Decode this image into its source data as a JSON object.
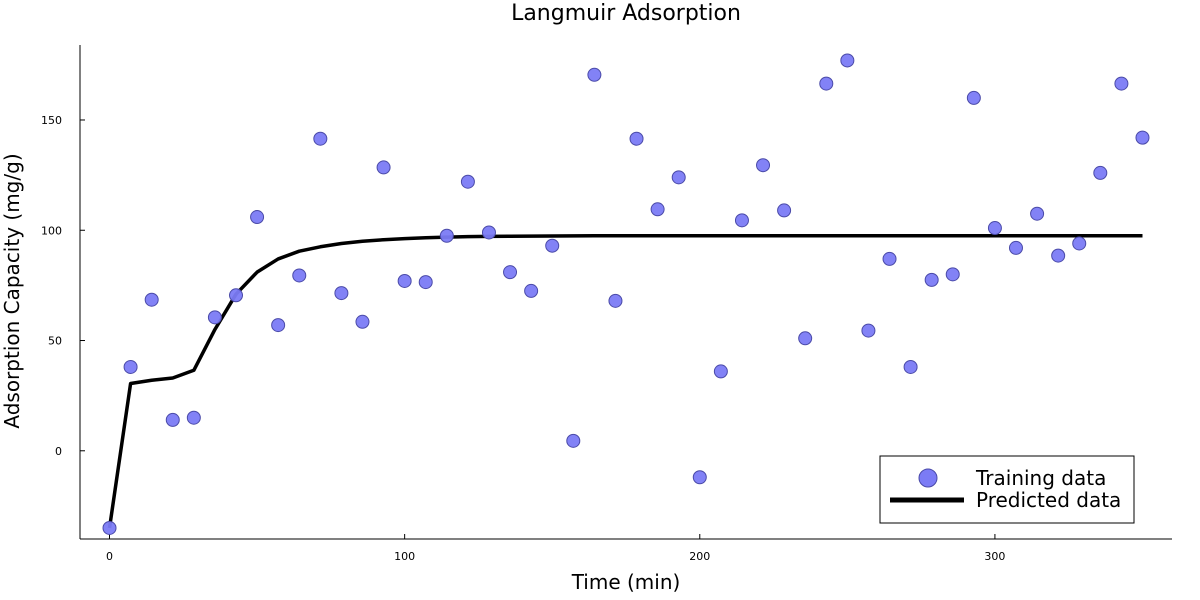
{
  "chart_data": {
    "type": "scatter",
    "title": "Langmuir Adsorption",
    "xlabel": "Time (min)",
    "ylabel": "Adsorption Capacity (mg/g)",
    "xlim": [
      -10,
      360
    ],
    "ylim": [
      -40,
      184
    ],
    "xticks": [
      0,
      100,
      200,
      300
    ],
    "yticks": [
      0,
      50,
      100,
      150
    ],
    "grid": false,
    "legend_position": "bottom-right",
    "series": [
      {
        "name": "Training data",
        "kind": "scatter",
        "color": "#7b7bf5",
        "x": [
          0,
          7.14,
          14.29,
          21.43,
          28.57,
          35.71,
          42.86,
          50,
          57.14,
          64.29,
          71.43,
          78.57,
          85.71,
          92.86,
          100,
          107.14,
          114.29,
          121.43,
          128.57,
          135.71,
          142.86,
          150,
          157.14,
          164.29,
          171.43,
          178.57,
          185.71,
          192.86,
          200,
          207.14,
          214.29,
          221.43,
          228.57,
          235.71,
          242.86,
          250,
          257.14,
          264.29,
          271.43,
          278.57,
          285.71,
          292.86,
          300,
          307.14,
          314.29,
          321.43,
          328.57,
          335.71,
          342.86,
          350
        ],
        "y": [
          -35,
          38,
          68.5,
          14,
          15,
          60.5,
          70.5,
          106,
          57,
          79.5,
          141.5,
          71.5,
          58.5,
          128.5,
          77,
          76.5,
          97.5,
          122,
          99,
          81,
          72.5,
          93,
          4.5,
          170.5,
          68,
          141.5,
          109.5,
          124,
          -12,
          36,
          104.5,
          129.5,
          109,
          51,
          166.5,
          177,
          54.5,
          87,
          38,
          77.5,
          80,
          160,
          101,
          92,
          107.5,
          88.5,
          94,
          126,
          166.5,
          142
        ]
      },
      {
        "name": "Predicted data",
        "kind": "line",
        "color": "#000000",
        "x": [
          0,
          7.14,
          14.29,
          21.43,
          28.57,
          35.71,
          42.86,
          50,
          57.14,
          64.29,
          71.43,
          78.57,
          85.71,
          92.86,
          100,
          107.14,
          114.29,
          121.43,
          128.57,
          135.71,
          142.86,
          150,
          157.14,
          164.29,
          171.43,
          178.57,
          185.71,
          192.86,
          200,
          350
        ],
        "y": [
          -35,
          30.5,
          32,
          33,
          36.5,
          55,
          71,
          81,
          87,
          90.5,
          92.5,
          94,
          95,
          95.7,
          96.2,
          96.6,
          96.9,
          97.1,
          97.2,
          97.3,
          97.35,
          97.4,
          97.45,
          97.5,
          97.5,
          97.5,
          97.5,
          97.5,
          97.5,
          97.5
        ]
      }
    ]
  }
}
